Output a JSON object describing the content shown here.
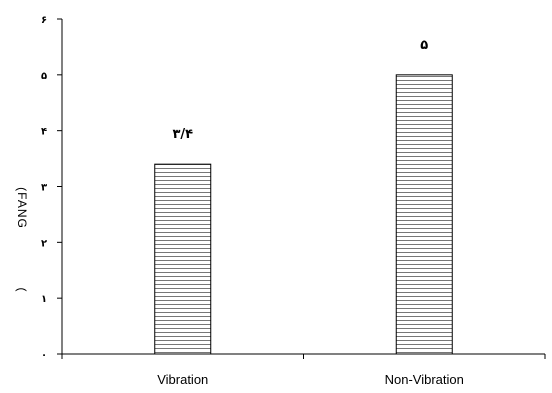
{
  "chart_data": {
    "type": "bar",
    "categories": [
      "Vibration",
      "Non-Vibration"
    ],
    "values": [
      3.4,
      5
    ],
    "value_labels": [
      "۳/۴",
      "۵"
    ],
    "ylim": [
      0,
      6
    ],
    "yticks": [
      0,
      1,
      2,
      3,
      4,
      5,
      6
    ],
    "ytick_labels": [
      "۰",
      "۱",
      "۲",
      "۳",
      "۴",
      "۵",
      "۶"
    ],
    "ylabel_lines": [
      "(FANG",
      "("
    ],
    "xlabel": "",
    "title": "",
    "grid": false,
    "bar_fill": "horizontal-hatch",
    "colors": {
      "bar_stroke": "#000000",
      "bar_hatch": "#777777",
      "axis": "#000000"
    }
  }
}
